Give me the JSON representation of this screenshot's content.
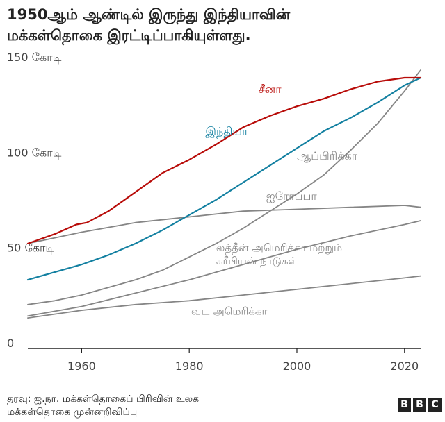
{
  "title_line1": "1950ஆம் ஆண்டில் இருந்து இந்தியாவின்",
  "title_line2": "மக்கள்தொகை இரட்டிப்பாகியுள்ளது.",
  "source_line1": "தரவு: ஐ.நா. மக்கள்தொகைப் பிரிவின் உலக",
  "source_line2": "மக்கள்தொகை முன்னறிவிப்பு",
  "logo": [
    "B",
    "B",
    "C"
  ],
  "colors": {
    "china": "#b80c09",
    "india": "#1380a1",
    "others": "#858585",
    "axis": "#222222"
  },
  "chart_data": {
    "type": "line",
    "xlim": [
      1950,
      2023
    ],
    "ylim": [
      0,
      150
    ],
    "x_ticks": [
      1960,
      1980,
      2000,
      2020
    ],
    "y_ticks": [
      {
        "value": 150,
        "label": "150 கோடி"
      },
      {
        "value": 100,
        "label": "100 கோடி"
      },
      {
        "value": 50,
        "label": "50 கோடி"
      },
      {
        "value": 0,
        "label": "0"
      }
    ],
    "grid": false,
    "series": [
      {
        "key": "china",
        "name": "சீனா",
        "label_lines": [
          "சீனா"
        ],
        "color": "#b80c09",
        "x": [
          1950,
          1955,
          1959,
          1961,
          1965,
          1970,
          1975,
          1980,
          1985,
          1990,
          1995,
          2000,
          2005,
          2010,
          2015,
          2020,
          2023
        ],
        "y": [
          55,
          60,
          65,
          66,
          72,
          82,
          92,
          99,
          107,
          116,
          122,
          127,
          131,
          136,
          140,
          142,
          142
        ]
      },
      {
        "key": "india",
        "name": "இந்தியா",
        "label_lines": [
          "இந்தியா"
        ],
        "color": "#1380a1",
        "x": [
          1950,
          1955,
          1960,
          1965,
          1970,
          1975,
          1980,
          1985,
          1990,
          1995,
          2000,
          2005,
          2010,
          2015,
          2020,
          2023
        ],
        "y": [
          36,
          40,
          44,
          49,
          55,
          62,
          70,
          78,
          87,
          96,
          105,
          114,
          121,
          129,
          138,
          142
        ]
      },
      {
        "key": "africa",
        "name": "ஆப்பிரிக்கா",
        "label_lines": [
          "ஆப்பிரிக்கா"
        ],
        "color": "#858585",
        "x": [
          1950,
          1955,
          1960,
          1965,
          1970,
          1975,
          1980,
          1985,
          1990,
          1995,
          2000,
          2005,
          2010,
          2015,
          2020,
          2023
        ],
        "y": [
          23,
          25,
          28,
          32,
          36,
          41,
          48,
          55,
          63,
          72,
          81,
          91,
          104,
          118,
          135,
          146
        ]
      },
      {
        "key": "europe",
        "name": "ஐரோப்பா",
        "label_lines": [
          "ஐரோப்பா"
        ],
        "color": "#858585",
        "x": [
          1950,
          1960,
          1970,
          1980,
          1990,
          2000,
          2010,
          2020,
          2023
        ],
        "y": [
          55,
          61,
          66,
          69,
          72,
          73,
          74,
          75,
          74
        ]
      },
      {
        "key": "latam",
        "name": "லத்தீன் அமெரிக்கா மற்றும் கரீபியன் நாடுகள்",
        "label_lines": [
          "லத்தீன் அமெரிக்கா மற்றும்",
          "கரீபியன் நாடுகள்"
        ],
        "color": "#858585",
        "x": [
          1950,
          1960,
          1970,
          1980,
          1990,
          2000,
          2010,
          2020,
          2023
        ],
        "y": [
          17,
          22,
          29,
          36,
          44,
          52,
          59,
          65,
          67
        ]
      },
      {
        "key": "namerica",
        "name": "வட அமெரிக்கா",
        "label_lines": [
          "வட அமெரிக்கா"
        ],
        "color": "#858585",
        "x": [
          1950,
          1960,
          1970,
          1980,
          1990,
          2000,
          2010,
          2020,
          2023
        ],
        "y": [
          16,
          20,
          23,
          25,
          28,
          31,
          34,
          37,
          38
        ]
      }
    ]
  }
}
